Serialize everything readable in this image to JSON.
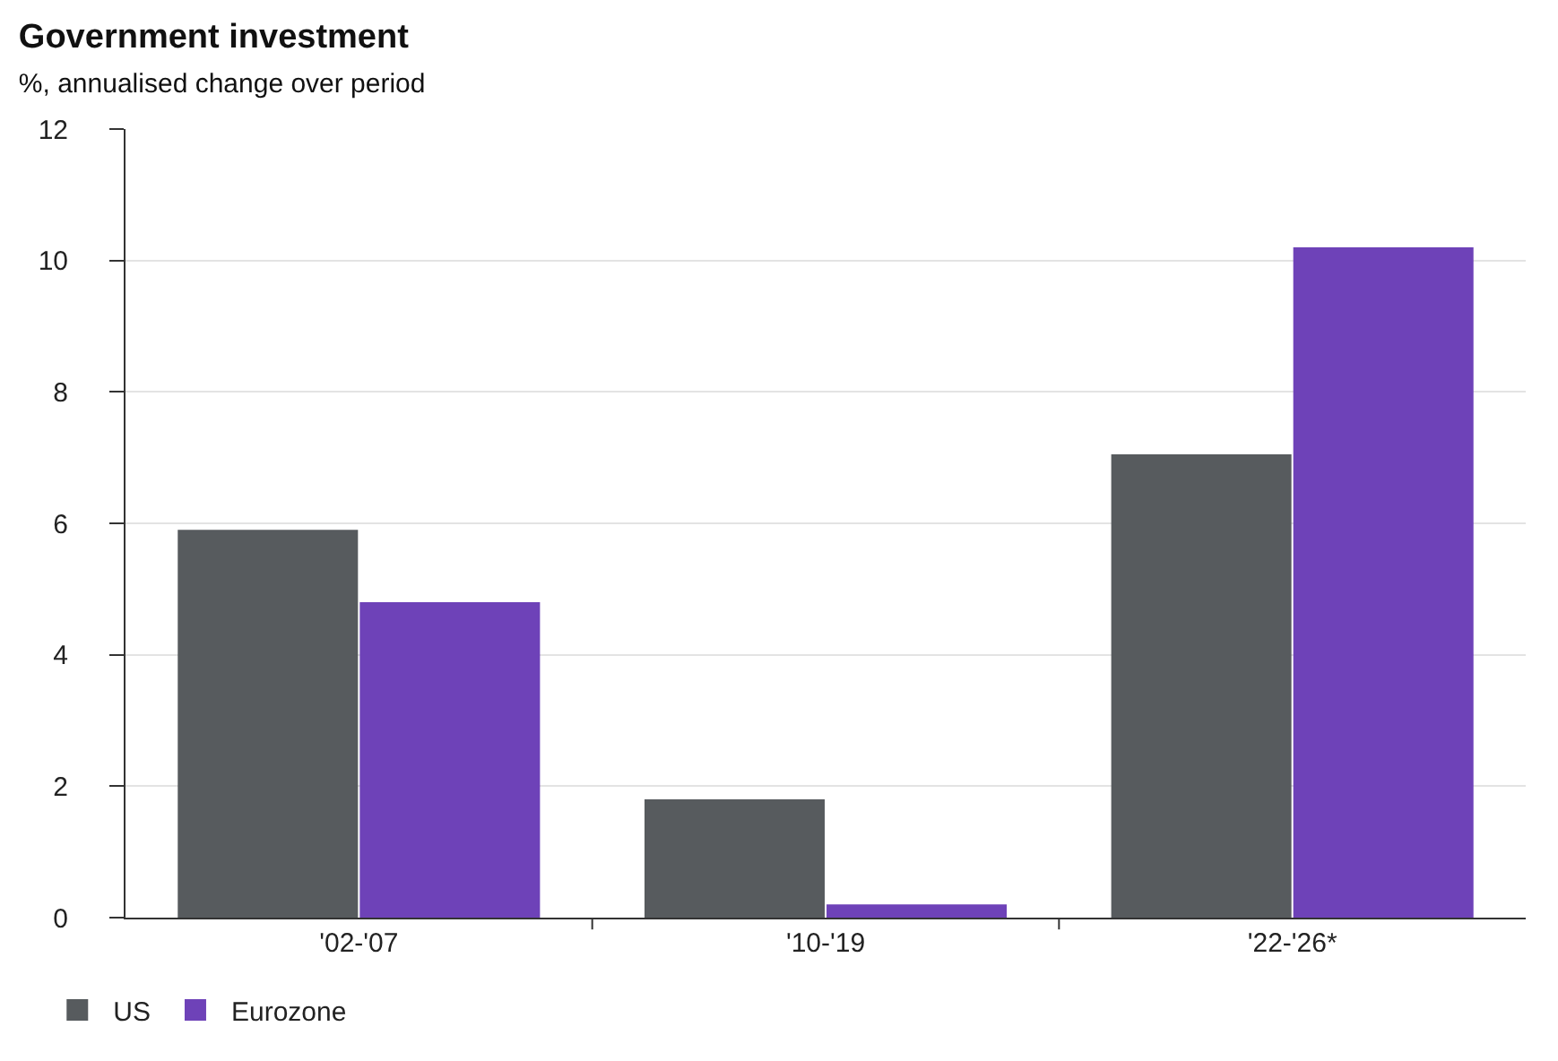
{
  "chart_data": {
    "type": "bar",
    "title": "Government investment",
    "subtitle": "%, annualised change over period",
    "categories": [
      "'02-'07",
      "'10-'19",
      "'22-'26*"
    ],
    "series": [
      {
        "name": "US",
        "color": "#575b5e",
        "values": [
          5.9,
          1.8,
          7.05
        ]
      },
      {
        "name": "Eurozone",
        "color": "#6e42b8",
        "values": [
          4.8,
          0.2,
          10.2
        ]
      }
    ],
    "ylim": [
      0,
      12
    ],
    "yticks": [
      0,
      2,
      4,
      6,
      8,
      10,
      12
    ],
    "grid": "y",
    "legend": "bottom left"
  }
}
